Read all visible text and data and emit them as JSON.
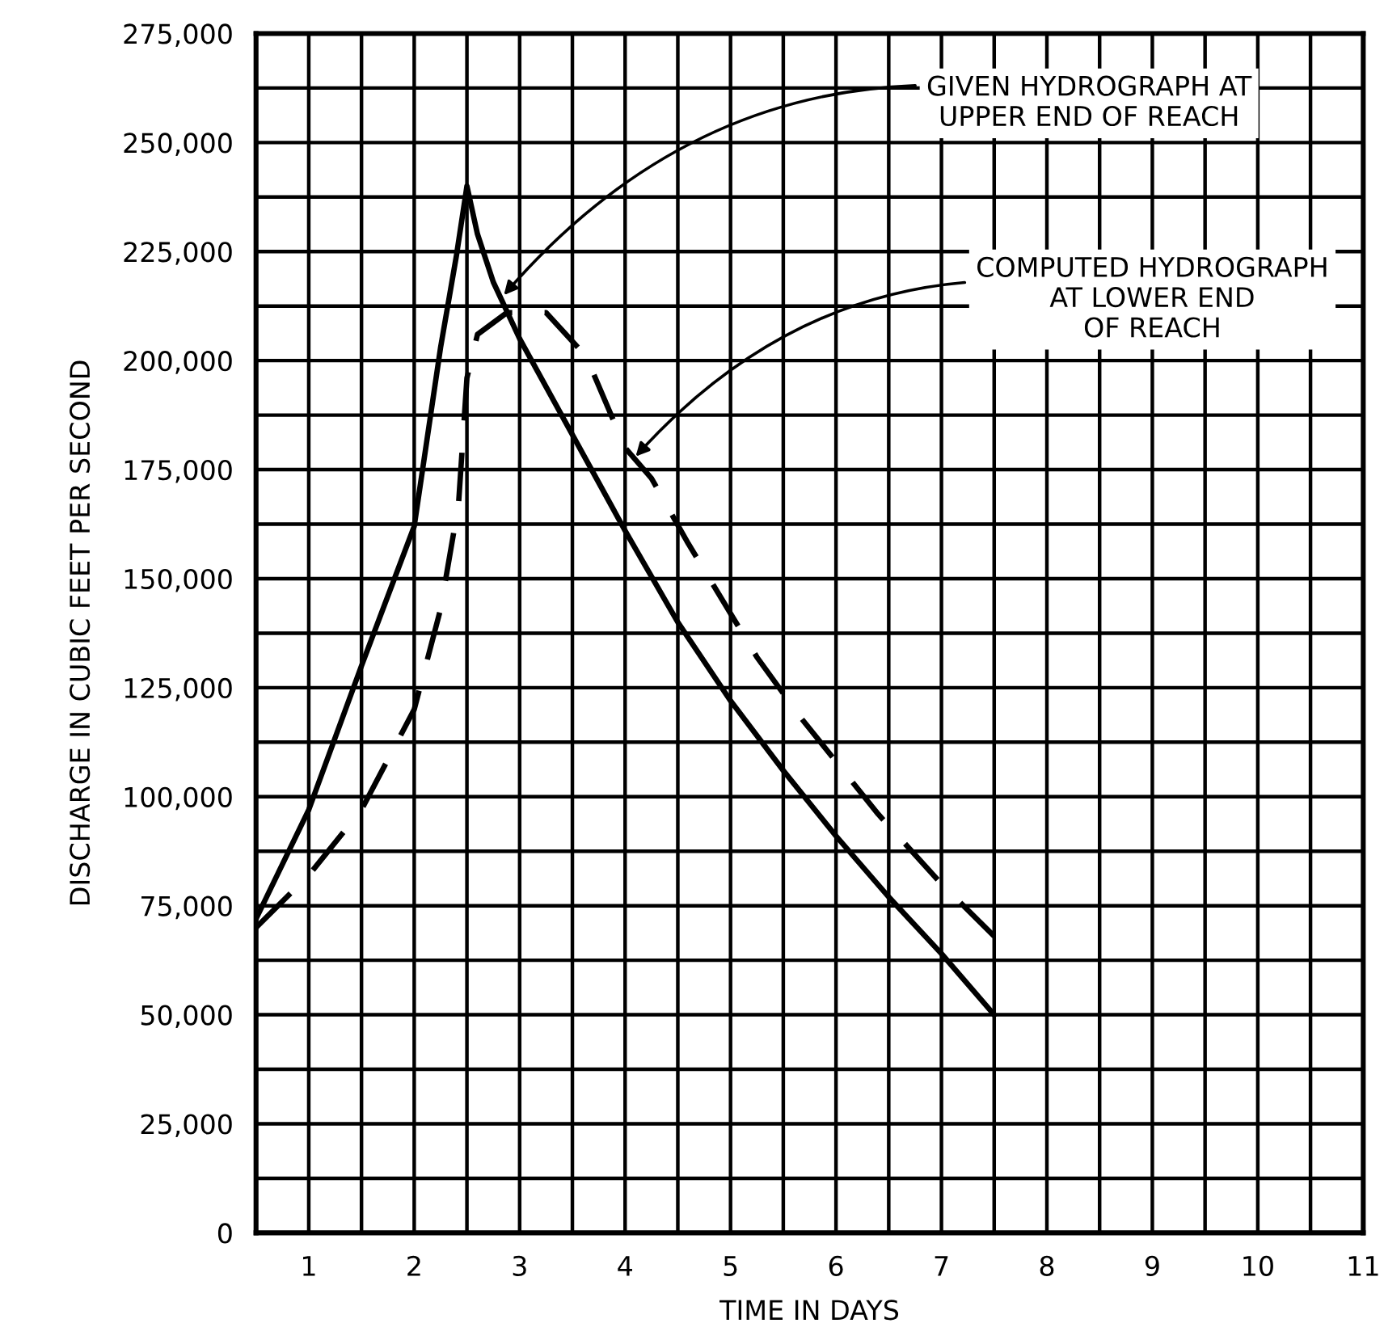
{
  "chart_data": {
    "type": "line",
    "xlabel": "TIME IN DAYS",
    "ylabel": "DISCHARGE IN CUBIC FEET PER SECOND",
    "series": [
      {
        "color": "#000000",
        "line_style": "solid",
        "x": [
          0.5,
          1.0,
          1.5,
          2.0,
          2.25,
          2.4,
          2.5,
          2.6,
          2.75,
          3.0,
          3.5,
          4.0,
          4.5,
          5.0,
          5.5,
          6.0,
          6.5,
          7.0,
          7.5
        ],
        "values": [
          72000,
          97000,
          130000,
          162000,
          203000,
          224000,
          240000,
          229000,
          218000,
          205000,
          183000,
          161000,
          140000,
          122000,
          106000,
          91000,
          77000,
          64000,
          50000
        ]
      },
      {
        "color": "#000000",
        "line_style": "dashed",
        "x": [
          0.5,
          1.0,
          1.5,
          2.0,
          2.25,
          2.42,
          2.5,
          2.6,
          2.88,
          3.25,
          3.63,
          4.0,
          4.25,
          4.6,
          5.25,
          5.67,
          6.4,
          7.0,
          7.5
        ],
        "values": [
          70000,
          82000,
          97000,
          120000,
          143000,
          167000,
          196000,
          206000,
          211000,
          211000,
          201000,
          180000,
          173000,
          158000,
          132000,
          118000,
          96000,
          80000,
          68000
        ]
      }
    ],
    "annotations": [
      {
        "text": "GIVEN HYDROGRAPH AT\nUPPER END OF REACH",
        "x": 2.85,
        "y": 215000
      },
      {
        "text": "COMPUTED HYDROGRAPH\nAT LOWER END\nOF REACH",
        "x": 4.1,
        "y": 178000
      }
    ],
    "xlim": [
      0.5,
      11
    ],
    "xticks": [
      {
        "value": 1,
        "label": "1"
      },
      {
        "value": 1.5,
        "label": null
      },
      {
        "value": 2,
        "label": "2"
      },
      {
        "value": 2.5,
        "label": null
      },
      {
        "value": 3,
        "label": "3"
      },
      {
        "value": 3.5,
        "label": null
      },
      {
        "value": 4,
        "label": "4"
      },
      {
        "value": 4.5,
        "label": null
      },
      {
        "value": 5,
        "label": "5"
      },
      {
        "value": 5.5,
        "label": null
      },
      {
        "value": 6,
        "label": "6"
      },
      {
        "value": 6.5,
        "label": null
      },
      {
        "value": 7,
        "label": "7"
      },
      {
        "value": 7.5,
        "label": null
      },
      {
        "value": 8,
        "label": "8"
      },
      {
        "value": 8.5,
        "label": null
      },
      {
        "value": 9,
        "label": "9"
      },
      {
        "value": 9.5,
        "label": null
      },
      {
        "value": 10,
        "label": "10"
      },
      {
        "value": 10.5,
        "label": null
      },
      {
        "value": 11,
        "label": "11"
      }
    ],
    "ylim": [
      0,
      275000
    ],
    "yticks": [
      0,
      {
        "value": 12500,
        "label": null
      },
      {
        "value": 25000,
        "label": "25,000"
      },
      {
        "value": 37500,
        "label": null
      },
      {
        "value": 50000,
        "label": "50,000"
      },
      {
        "value": 62500,
        "label": null
      },
      {
        "value": 75000,
        "label": "75,000"
      },
      {
        "value": 87500,
        "label": null
      },
      {
        "value": 100000,
        "label": "100,000"
      },
      {
        "value": 112500,
        "label": null
      },
      {
        "value": 125000,
        "label": "125,000"
      },
      {
        "value": 137500,
        "label": null
      },
      {
        "value": 150000,
        "label": "150,000"
      },
      {
        "value": 162500,
        "label": null
      },
      {
        "value": 175000,
        "label": "175,000"
      },
      {
        "value": 187500,
        "label": null
      },
      {
        "value": 200000,
        "label": "200,000"
      },
      {
        "value": 212500,
        "label": null
      },
      {
        "value": 225000,
        "label": "225,000"
      },
      {
        "value": 237500,
        "label": null
      },
      {
        "value": 250000,
        "label": "250,000"
      },
      {
        "value": 262500,
        "label": null
      },
      {
        "value": 275000,
        "label": "275,000"
      }
    ],
    "grid": true,
    "legend": false
  }
}
